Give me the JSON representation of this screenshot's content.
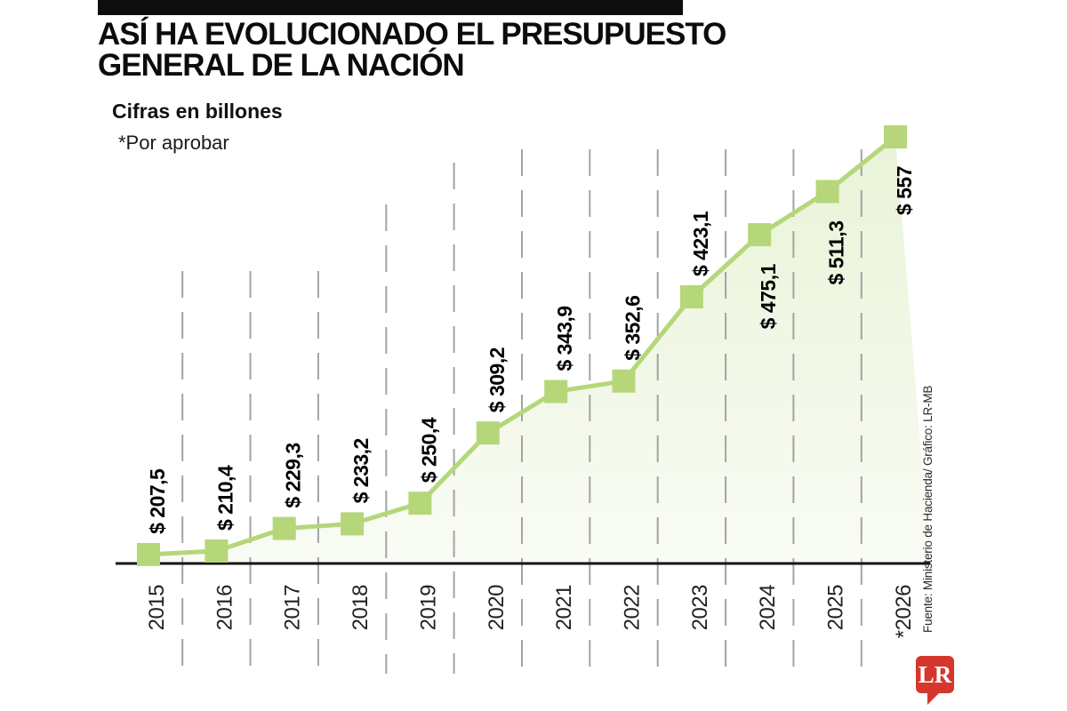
{
  "header": {
    "title_line1": "ASÍ HA EVOLUCIONADO EL PRESUPUESTO",
    "title_line2": "GENERAL DE LA NACIÓN"
  },
  "logo": {
    "text": "LR"
  },
  "colors": {
    "accent_green": "#b5d77a",
    "fill_green": "rgba(181,215,122,0.30)",
    "fill_green_faint": "rgba(181,215,122,0.08)",
    "grid_gray": "#a3a3a3",
    "axis_black": "#141414",
    "logo_red": "#d5372d"
  },
  "chart_data": {
    "type": "line",
    "title": "ASÍ HA EVOLUCIONADO EL PRESUPUESTO GENERAL DE LA NACIÓN",
    "units_note": "Cifras en billones",
    "note": "*Por aprobar",
    "source": "Fuente: Ministerio de Hacienda/ Gráfico: LR-MB",
    "x": [
      "2015",
      "2016",
      "2017",
      "2018",
      "2019",
      "2020",
      "2021",
      "2022",
      "2023",
      "2024",
      "2025",
      "*2026"
    ],
    "values": [
      207.5,
      210.4,
      229.3,
      233.2,
      250.4,
      309.2,
      343.9,
      352.6,
      423.1,
      475.1,
      511.3,
      557
    ],
    "value_labels": [
      "$ 207,5",
      "$ 210,4",
      "$ 229,3",
      "$ 233,2",
      "$ 250,4",
      "$ 309,2",
      "$ 343,9",
      "$ 352,6",
      "$ 423,1",
      "$ 475,1",
      "$ 511,3",
      "$ 557"
    ],
    "label_side": [
      "above",
      "above",
      "above",
      "above",
      "above",
      "above",
      "above",
      "above",
      "above",
      "below",
      "below",
      "below"
    ],
    "ylim": [
      200,
      570
    ],
    "grid": "vertical-dashed",
    "marker": "square",
    "legend": "none"
  }
}
